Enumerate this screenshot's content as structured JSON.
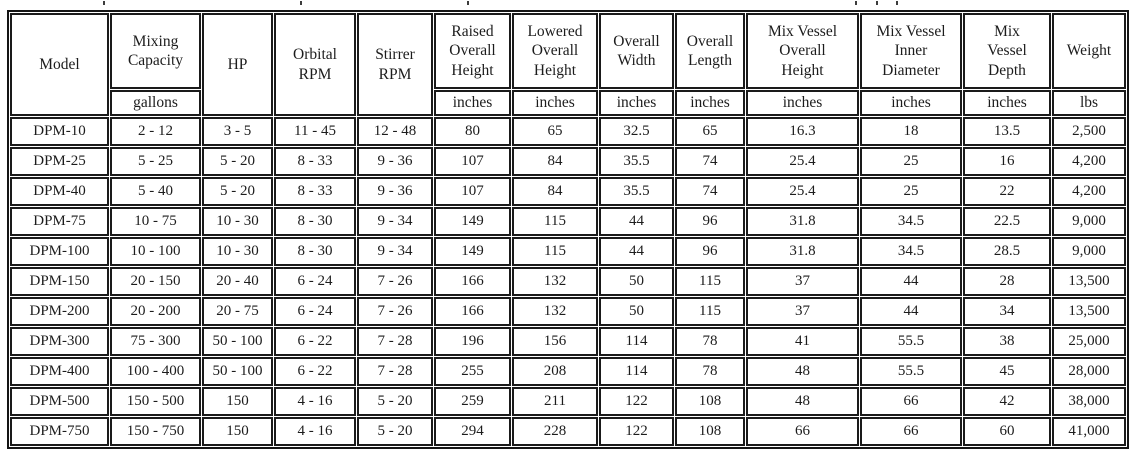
{
  "page": {
    "background_color": "#ffffff",
    "border_color": "#1a1a1a",
    "text_color": "#1c1c1c"
  },
  "artifacts": {
    "description": "descender fragments of a cropped-off title line above the table",
    "cropped_text_marks": [
      103,
      300,
      467,
      855,
      876,
      896
    ]
  },
  "table": {
    "headers": [
      "Model",
      "Mixing\nCapacity",
      "HP",
      "Orbital\nRPM",
      "Stirrer\nRPM",
      "Raised\nOverall\nHeight",
      "Lowered\nOverall\nHeight",
      "Overall\nWidth",
      "Overall\nLength",
      "Mix Vessel\nOverall\nHeight",
      "Mix Vessel\nInner\nDiameter",
      "Mix\nVessel\nDepth",
      "Weight"
    ],
    "units": [
      "gallons",
      "inches",
      "inches",
      "inches",
      "inches",
      "inches",
      "inches",
      "inches",
      "lbs"
    ],
    "rows": [
      [
        "DPM-10",
        "2 - 12",
        "3 - 5",
        "11 - 45",
        "12 - 48",
        "80",
        "65",
        "32.5",
        "65",
        "16.3",
        "18",
        "13.5",
        "2,500"
      ],
      [
        "DPM-25",
        "5 - 25",
        "5 - 20",
        "8 - 33",
        "9 - 36",
        "107",
        "84",
        "35.5",
        "74",
        "25.4",
        "25",
        "16",
        "4,200"
      ],
      [
        "DPM-40",
        "5 - 40",
        "5 - 20",
        "8 - 33",
        "9 - 36",
        "107",
        "84",
        "35.5",
        "74",
        "25.4",
        "25",
        "22",
        "4,200"
      ],
      [
        "DPM-75",
        "10 - 75",
        "10 - 30",
        "8 - 30",
        "9 - 34",
        "149",
        "115",
        "44",
        "96",
        "31.8",
        "34.5",
        "22.5",
        "9,000"
      ],
      [
        "DPM-100",
        "10 - 100",
        "10 - 30",
        "8 - 30",
        "9 - 34",
        "149",
        "115",
        "44",
        "96",
        "31.8",
        "34.5",
        "28.5",
        "9,000"
      ],
      [
        "DPM-150",
        "20 - 150",
        "20 - 40",
        "6 - 24",
        "7 - 26",
        "166",
        "132",
        "50",
        "115",
        "37",
        "44",
        "28",
        "13,500"
      ],
      [
        "DPM-200",
        "20 - 200",
        "20 - 75",
        "6 - 24",
        "7 - 26",
        "166",
        "132",
        "50",
        "115",
        "37",
        "44",
        "34",
        "13,500"
      ],
      [
        "DPM-300",
        "75 - 300",
        "50 - 100",
        "6 - 22",
        "7 - 28",
        "196",
        "156",
        "114",
        "78",
        "41",
        "55.5",
        "38",
        "25,000"
      ],
      [
        "DPM-400",
        "100 - 400",
        "50 - 100",
        "6 - 22",
        "7 - 28",
        "255",
        "208",
        "114",
        "78",
        "48",
        "55.5",
        "45",
        "28,000"
      ],
      [
        "DPM-500",
        "150 - 500",
        "150",
        "4 - 16",
        "5 - 20",
        "259",
        "211",
        "122",
        "108",
        "48",
        "66",
        "42",
        "38,000"
      ],
      [
        "DPM-750",
        "150 - 750",
        "150",
        "4 - 16",
        "5 - 20",
        "294",
        "228",
        "122",
        "108",
        "66",
        "66",
        "60",
        "41,000"
      ]
    ]
  }
}
